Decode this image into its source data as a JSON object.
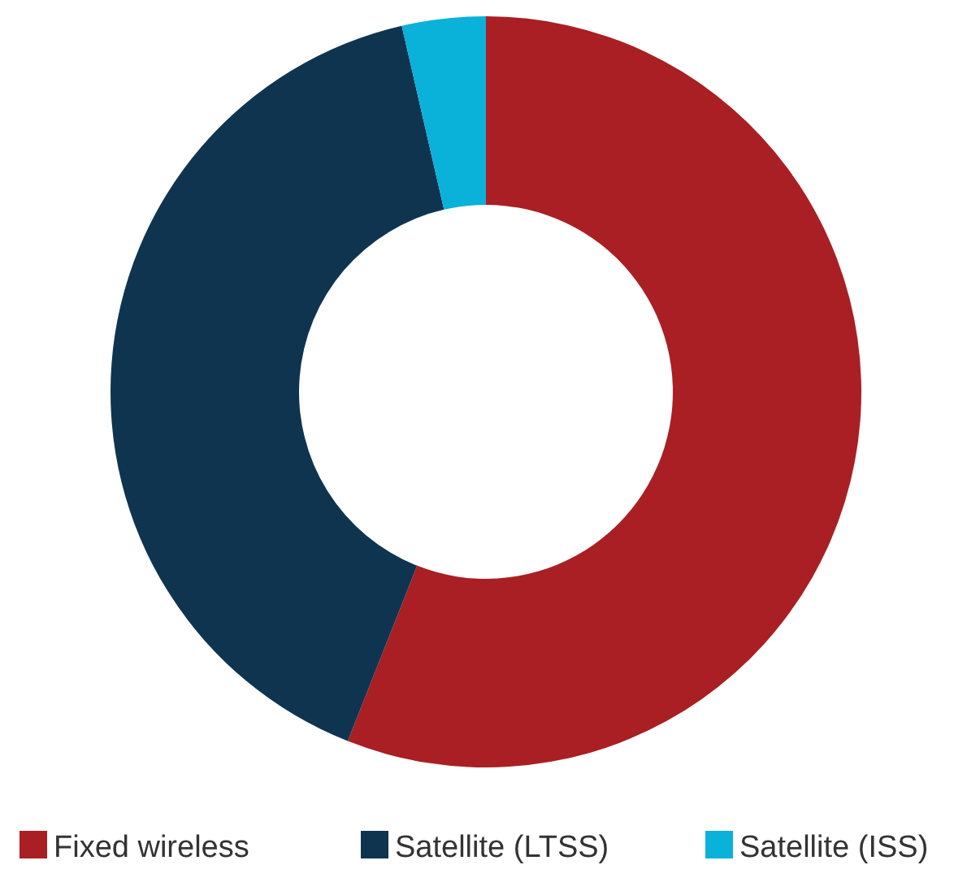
{
  "chart_data": {
    "type": "donut",
    "categories": [
      "Fixed wireless",
      "Satellite (LTSS)",
      "Satellite (ISS)"
    ],
    "values": [
      56,
      40.4,
      3.6
    ],
    "colors": [
      "#a91f24",
      "#0f3450",
      "#0ab1d9"
    ],
    "legend": "bottom"
  }
}
